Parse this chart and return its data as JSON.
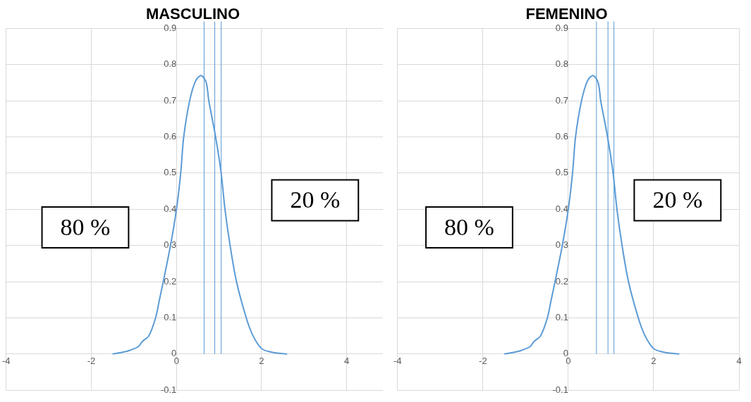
{
  "chart_data": [
    {
      "type": "line",
      "title": "MASCULINO",
      "x": [
        -1.5,
        -1.3,
        -1.1,
        -0.9,
        -0.8,
        -0.65,
        -0.49,
        -0.4,
        -0.31,
        -0.14,
        0,
        0.1,
        0.17,
        0.31,
        0.45,
        0.58,
        0.7,
        0.76,
        0.92,
        1.05,
        1.14,
        1.26,
        1.41,
        1.64,
        1.8,
        2.0,
        2.2,
        2.4,
        2.6
      ],
      "series": [
        {
          "color": "#5b9bd5",
          "values": [
            0,
            0.004,
            0.01,
            0.02,
            0.035,
            0.05,
            0.1,
            0.15,
            0.2,
            0.3,
            0.4,
            0.5,
            0.6,
            0.7,
            0.755,
            0.77,
            0.75,
            0.7,
            0.6,
            0.5,
            0.4,
            0.3,
            0.2,
            0.1,
            0.05,
            0.015,
            0.006,
            0.002,
            0
          ]
        }
      ],
      "xlim": [
        -4,
        4.85
      ],
      "xticks": [
        -4,
        -2,
        0,
        2,
        4
      ],
      "ylim": [
        -0.1,
        0.9
      ],
      "yticks": [
        -0.1,
        0,
        0.1,
        0.2,
        0.3,
        0.4,
        0.5,
        0.6,
        0.7,
        0.8,
        0.9
      ],
      "grid": true,
      "legend": false,
      "ref_lines": [
        {
          "axis": "x",
          "value": 0.65,
          "color": "#5b9bd5"
        },
        {
          "axis": "x",
          "value": 0.9,
          "color": "#5b9bd5"
        },
        {
          "axis": "x",
          "value": 1.05,
          "color": "#5b9bd5"
        }
      ],
      "annotations": [
        "80 %",
        "20 %"
      ]
    },
    {
      "type": "line",
      "title": "FEMENINO",
      "x": [
        -1.5,
        -1.3,
        -1.1,
        -0.9,
        -0.8,
        -0.65,
        -0.49,
        -0.4,
        -0.31,
        -0.14,
        0,
        0.1,
        0.17,
        0.31,
        0.45,
        0.58,
        0.7,
        0.76,
        0.92,
        1.05,
        1.14,
        1.26,
        1.41,
        1.64,
        1.8,
        2.0,
        2.2,
        2.4,
        2.6
      ],
      "series": [
        {
          "color": "#5b9bd5",
          "values": [
            0,
            0.004,
            0.01,
            0.02,
            0.035,
            0.05,
            0.1,
            0.15,
            0.2,
            0.3,
            0.4,
            0.5,
            0.6,
            0.7,
            0.755,
            0.77,
            0.75,
            0.7,
            0.6,
            0.5,
            0.4,
            0.3,
            0.2,
            0.1,
            0.05,
            0.015,
            0.006,
            0.002,
            0
          ]
        }
      ],
      "xlim": [
        -4,
        4
      ],
      "xticks": [
        -4,
        -2,
        0,
        2,
        4
      ],
      "ylim": [
        -0.1,
        0.9
      ],
      "yticks": [
        -0.1,
        0,
        0.1,
        0.2,
        0.3,
        0.4,
        0.5,
        0.6,
        0.7,
        0.8,
        0.9
      ],
      "grid": true,
      "legend": false,
      "ref_lines": [
        {
          "axis": "x",
          "value": 0.66,
          "color": "#5b9bd5"
        },
        {
          "axis": "x",
          "value": 0.93,
          "color": "#5b9bd5"
        },
        {
          "axis": "x",
          "value": 1.07,
          "color": "#5b9bd5"
        }
      ],
      "annotations": [
        "80 %",
        "20 %"
      ]
    }
  ]
}
